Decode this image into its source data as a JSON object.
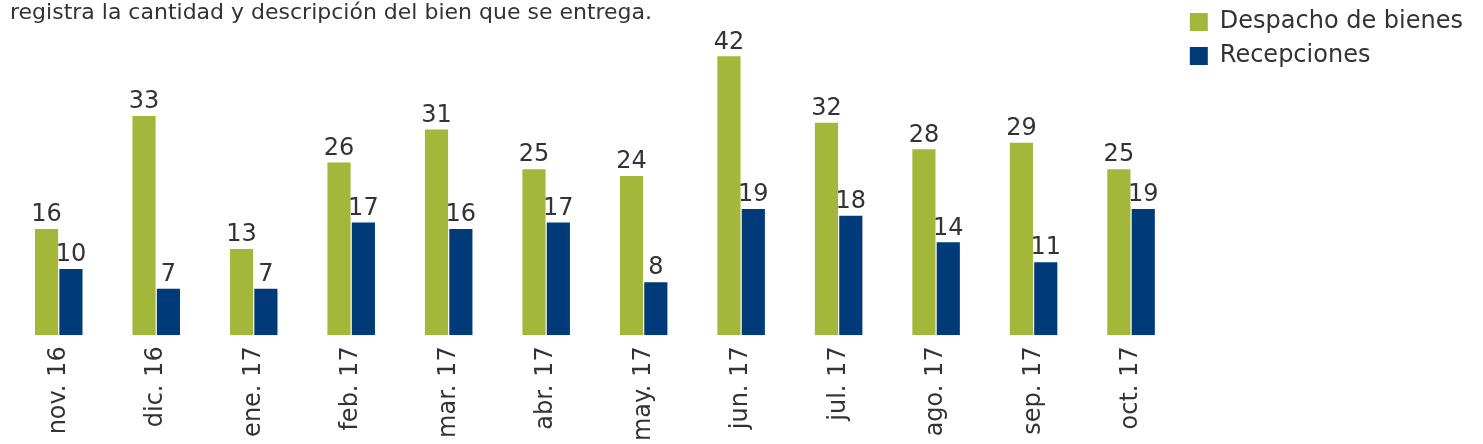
{
  "chart_data": {
    "type": "bar",
    "subtitle": "registra la cantidad y descripción del bien que se entrega.",
    "categories": [
      "nov. 16",
      "dic. 16",
      "ene. 17",
      "feb. 17",
      "mar. 17",
      "abr. 17",
      "may. 17",
      "jun. 17",
      "jul. 17",
      "ago. 17",
      "sep. 17",
      "oct. 17"
    ],
    "series": [
      {
        "name": "Despacho de bienes",
        "color": "#a3b83a",
        "values": [
          16,
          33,
          13,
          26,
          31,
          25,
          24,
          42,
          32,
          28,
          29,
          25
        ]
      },
      {
        "name": "Recepciones",
        "color": "#003a78",
        "values": [
          10,
          7,
          7,
          17,
          16,
          17,
          8,
          19,
          18,
          14,
          11,
          19
        ]
      }
    ],
    "data_labels": true,
    "legend": "top right",
    "grid": false
  }
}
